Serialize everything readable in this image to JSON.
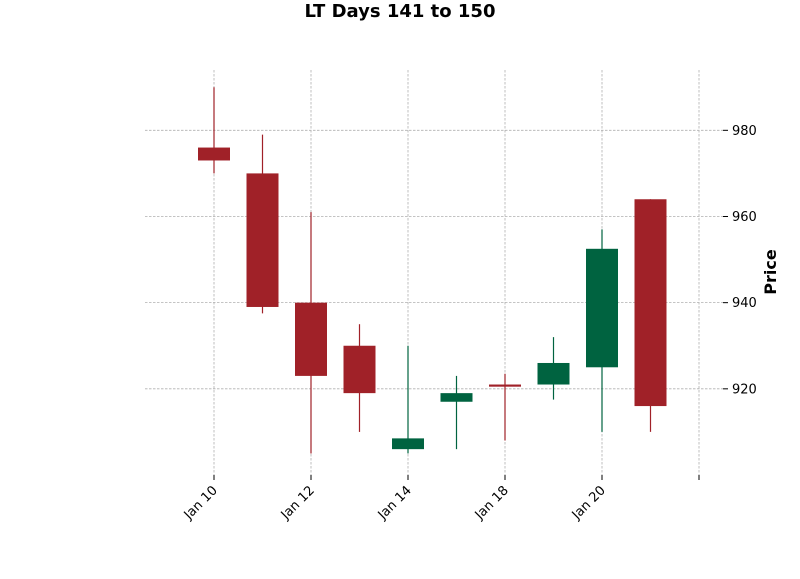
{
  "chart_data": {
    "type": "candlestick",
    "title": "LT Days 141 to 150",
    "xlabel": "",
    "ylabel": "Price",
    "ylim": [
      900,
      994
    ],
    "yticks": [
      920,
      940,
      960,
      980
    ],
    "xticks": [
      {
        "index": 0,
        "label": "Jan 10"
      },
      {
        "index": 2,
        "label": "Jan 12"
      },
      {
        "index": 4,
        "label": "Jan 14"
      },
      {
        "index": 6,
        "label": "Jan 18"
      },
      {
        "index": 8,
        "label": "Jan 20"
      },
      {
        "index": 10,
        "label": ""
      }
    ],
    "grid": true,
    "y_axis_side": "right",
    "colors": {
      "up": "#006340",
      "down": "#a02128"
    },
    "candles": [
      {
        "open": 976.0,
        "high": 990.0,
        "low": 970.0,
        "close": 973.0
      },
      {
        "open": 970.0,
        "high": 979.0,
        "low": 937.5,
        "close": 939.0
      },
      {
        "open": 940.0,
        "high": 961.0,
        "low": 905.0,
        "close": 923.0
      },
      {
        "open": 930.0,
        "high": 935.0,
        "low": 910.0,
        "close": 919.0
      },
      {
        "open": 906.0,
        "high": 930.0,
        "low": 905.0,
        "close": 908.5
      },
      {
        "open": 917.0,
        "high": 923.0,
        "low": 906.0,
        "close": 919.0
      },
      {
        "open": 921.0,
        "high": 923.5,
        "low": 908.0,
        "close": 920.5
      },
      {
        "open": 921.0,
        "high": 932.0,
        "low": 917.5,
        "close": 926.0
      },
      {
        "open": 925.0,
        "high": 957.0,
        "low": 910.0,
        "close": 952.5
      },
      {
        "open": 964.0,
        "high": 964.0,
        "low": 910.0,
        "close": 916.0
      }
    ]
  }
}
